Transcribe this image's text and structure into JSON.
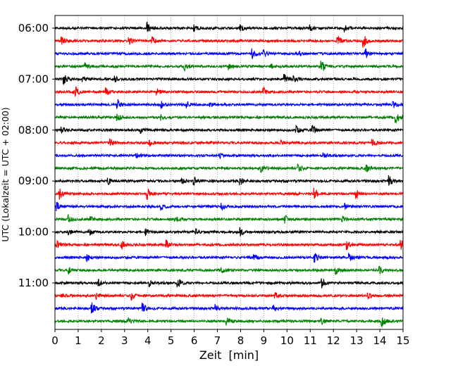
{
  "chart_data": {
    "type": "line",
    "xlabel": "Zeit  [min]",
    "ylabel": "UTC (Lokalzeit = UTC + 02:00)",
    "xlim": [
      0,
      15
    ],
    "x_ticks": [
      "0",
      "1",
      "2",
      "3",
      "4",
      "5",
      "6",
      "7",
      "8",
      "9",
      "10",
      "11",
      "12",
      "13",
      "14",
      "15"
    ],
    "y_ticks": [
      "06:00",
      "07:00",
      "08:00",
      "09:00",
      "10:00",
      "11:00"
    ],
    "grid": "vertical dotted lines at each minute",
    "trace_interval_min": 15,
    "trace_colors": [
      "#000000",
      "#ff0000",
      "#0000ff",
      "#008000"
    ],
    "traces": [
      {
        "start": "06:00",
        "color": "#000000",
        "events": [
          [
            4.0,
            7
          ],
          [
            6.0,
            4
          ],
          [
            8.0,
            4
          ],
          [
            11.0,
            5
          ],
          [
            12.5,
            4
          ]
        ]
      },
      {
        "start": "06:15",
        "color": "#ff0000",
        "events": [
          [
            0.3,
            5
          ],
          [
            3.2,
            5
          ],
          [
            4.2,
            5
          ],
          [
            12.2,
            8
          ],
          [
            13.3,
            9
          ]
        ]
      },
      {
        "start": "06:30",
        "color": "#0000ff",
        "events": [
          [
            8.5,
            6
          ],
          [
            9.0,
            5
          ],
          [
            10.5,
            4
          ],
          [
            13.4,
            6
          ]
        ]
      },
      {
        "start": "06:45",
        "color": "#008000",
        "events": [
          [
            1.3,
            4
          ],
          [
            5.6,
            5
          ],
          [
            7.5,
            4
          ],
          [
            9.3,
            3
          ],
          [
            11.5,
            9
          ]
        ]
      },
      {
        "start": "07:00",
        "color": "#000000",
        "events": [
          [
            0.4,
            7
          ],
          [
            1.2,
            4
          ],
          [
            2.6,
            4
          ],
          [
            9.9,
            6
          ],
          [
            10.3,
            4
          ]
        ]
      },
      {
        "start": "07:15",
        "color": "#ff0000",
        "events": [
          [
            0.9,
            7
          ],
          [
            2.2,
            6
          ],
          [
            4.4,
            4
          ],
          [
            9.0,
            5
          ]
        ]
      },
      {
        "start": "07:30",
        "color": "#0000ff",
        "events": [
          [
            2.7,
            7
          ],
          [
            4.6,
            4
          ],
          [
            5.7,
            4
          ],
          [
            6.7,
            3
          ],
          [
            14.6,
            5
          ]
        ]
      },
      {
        "start": "07:45",
        "color": "#008000",
        "events": [
          [
            2.7,
            5
          ],
          [
            4.6,
            4
          ],
          [
            14.7,
            7
          ]
        ]
      },
      {
        "start": "08:00",
        "color": "#000000",
        "events": [
          [
            0.3,
            4
          ],
          [
            3.7,
            4
          ],
          [
            10.4,
            6
          ],
          [
            11.1,
            6
          ]
        ]
      },
      {
        "start": "08:15",
        "color": "#ff0000",
        "events": [
          [
            2.4,
            5
          ],
          [
            4.1,
            4
          ],
          [
            9.7,
            4
          ],
          [
            13.7,
            4
          ]
        ]
      },
      {
        "start": "08:30",
        "color": "#0000ff",
        "events": [
          [
            3.5,
            3
          ],
          [
            7.1,
            3
          ],
          [
            11.6,
            4
          ]
        ]
      },
      {
        "start": "08:45",
        "color": "#008000",
        "events": [
          [
            8.9,
            6
          ],
          [
            10.5,
            5
          ],
          [
            13.4,
            6
          ]
        ]
      },
      {
        "start": "09:00",
        "color": "#000000",
        "events": [
          [
            2.3,
            4
          ],
          [
            5.5,
            4
          ],
          [
            6.0,
            5
          ],
          [
            8.0,
            6
          ],
          [
            14.4,
            8
          ]
        ]
      },
      {
        "start": "09:15",
        "color": "#ff0000",
        "events": [
          [
            0.2,
            7
          ],
          [
            4.0,
            8
          ],
          [
            11.2,
            7
          ],
          [
            13.0,
            6
          ]
        ]
      },
      {
        "start": "09:30",
        "color": "#0000ff",
        "events": [
          [
            0.1,
            5
          ],
          [
            4.6,
            4
          ],
          [
            7.2,
            4
          ],
          [
            12.5,
            4
          ]
        ]
      },
      {
        "start": "09:45",
        "color": "#008000",
        "events": [
          [
            0.6,
            5
          ],
          [
            1.5,
            4
          ],
          [
            5.2,
            4
          ],
          [
            9.9,
            6
          ],
          [
            12.4,
            3
          ]
        ]
      },
      {
        "start": "10:00",
        "color": "#000000",
        "events": [
          [
            0.6,
            4
          ],
          [
            1.5,
            4
          ],
          [
            3.9,
            4
          ],
          [
            6.1,
            4
          ],
          [
            8.0,
            6
          ]
        ]
      },
      {
        "start": "10:15",
        "color": "#ff0000",
        "events": [
          [
            0.1,
            4
          ],
          [
            2.9,
            5
          ],
          [
            4.8,
            6
          ],
          [
            12.6,
            6
          ],
          [
            14.9,
            8
          ]
        ]
      },
      {
        "start": "10:30",
        "color": "#0000ff",
        "events": [
          [
            1.4,
            4
          ],
          [
            8.6,
            4
          ],
          [
            11.2,
            6
          ],
          [
            12.7,
            5
          ]
        ]
      },
      {
        "start": "10:45",
        "color": "#008000",
        "events": [
          [
            0.6,
            5
          ],
          [
            7.2,
            5
          ],
          [
            12.1,
            6
          ],
          [
            14.0,
            5
          ]
        ]
      },
      {
        "start": "11:00",
        "color": "#000000",
        "events": [
          [
            1.9,
            4
          ],
          [
            4.1,
            4
          ],
          [
            5.3,
            7
          ],
          [
            11.5,
            6
          ]
        ]
      },
      {
        "start": "11:15",
        "color": "#ff0000",
        "events": [
          [
            0.3,
            4
          ],
          [
            1.8,
            4
          ],
          [
            3.3,
            6
          ],
          [
            9.5,
            4
          ],
          [
            13.5,
            4
          ]
        ]
      },
      {
        "start": "11:30",
        "color": "#0000ff",
        "events": [
          [
            1.6,
            9
          ],
          [
            3.8,
            7
          ],
          [
            6.9,
            5
          ],
          [
            9.4,
            6
          ]
        ]
      },
      {
        "start": "11:45",
        "color": "#008000",
        "events": [
          [
            3.2,
            6
          ],
          [
            7.4,
            5
          ],
          [
            11.5,
            4
          ],
          [
            14.1,
            7
          ]
        ]
      }
    ]
  }
}
